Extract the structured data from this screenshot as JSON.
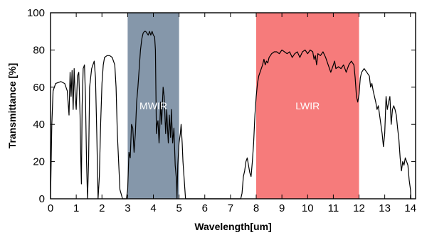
{
  "chart_data": {
    "type": "line",
    "xlabel": "Wavelength[um]",
    "ylabel": "Transmittance [%]",
    "xlim": [
      0,
      14.2
    ],
    "ylim": [
      0,
      100
    ],
    "x_ticks": [
      0,
      1,
      2,
      3,
      4,
      5,
      6,
      7,
      8,
      9,
      10,
      11,
      12,
      13,
      14
    ],
    "y_ticks": [
      0,
      20,
      40,
      60,
      80,
      100
    ],
    "grid": false,
    "bands": [
      {
        "label": "MWIR",
        "x_start": 3,
        "x_end": 5,
        "color": "#8597aa"
      },
      {
        "label": "LWIR",
        "x_start": 8,
        "x_end": 12,
        "color": "#f67b7b"
      }
    ],
    "series": [
      {
        "color": "#000000",
        "points": [
          [
            0.0,
            0
          ],
          [
            0.05,
            40
          ],
          [
            0.1,
            58
          ],
          [
            0.2,
            62
          ],
          [
            0.4,
            63
          ],
          [
            0.55,
            62
          ],
          [
            0.65,
            58
          ],
          [
            0.72,
            45
          ],
          [
            0.76,
            68
          ],
          [
            0.8,
            55
          ],
          [
            0.84,
            69
          ],
          [
            0.88,
            48
          ],
          [
            0.92,
            70
          ],
          [
            0.96,
            55
          ],
          [
            1.0,
            48
          ],
          [
            1.05,
            66
          ],
          [
            1.1,
            68
          ],
          [
            1.15,
            45
          ],
          [
            1.18,
            20
          ],
          [
            1.2,
            8
          ],
          [
            1.23,
            50
          ],
          [
            1.27,
            70
          ],
          [
            1.32,
            72
          ],
          [
            1.36,
            55
          ],
          [
            1.4,
            20
          ],
          [
            1.44,
            0
          ],
          [
            1.48,
            20
          ],
          [
            1.52,
            60
          ],
          [
            1.6,
            70
          ],
          [
            1.7,
            74
          ],
          [
            1.75,
            65
          ],
          [
            1.8,
            35
          ],
          [
            1.85,
            0
          ],
          [
            1.9,
            12
          ],
          [
            1.95,
            40
          ],
          [
            2.0,
            62
          ],
          [
            2.05,
            72
          ],
          [
            2.1,
            76
          ],
          [
            2.2,
            77
          ],
          [
            2.3,
            77
          ],
          [
            2.4,
            76
          ],
          [
            2.5,
            72
          ],
          [
            2.55,
            60
          ],
          [
            2.6,
            35
          ],
          [
            2.7,
            5
          ],
          [
            2.8,
            0
          ],
          [
            2.95,
            0
          ],
          [
            3.0,
            5
          ],
          [
            3.05,
            25
          ],
          [
            3.1,
            22
          ],
          [
            3.15,
            40
          ],
          [
            3.2,
            38
          ],
          [
            3.25,
            25
          ],
          [
            3.3,
            35
          ],
          [
            3.35,
            52
          ],
          [
            3.4,
            60
          ],
          [
            3.45,
            70
          ],
          [
            3.5,
            80
          ],
          [
            3.55,
            86
          ],
          [
            3.6,
            89
          ],
          [
            3.65,
            90
          ],
          [
            3.7,
            90
          ],
          [
            3.75,
            89
          ],
          [
            3.8,
            88
          ],
          [
            3.85,
            90
          ],
          [
            3.9,
            88
          ],
          [
            3.95,
            90
          ],
          [
            4.0,
            88
          ],
          [
            4.05,
            87
          ],
          [
            4.08,
            80
          ],
          [
            4.12,
            35
          ],
          [
            4.15,
            40
          ],
          [
            4.18,
            42
          ],
          [
            4.22,
            30
          ],
          [
            4.25,
            38
          ],
          [
            4.28,
            52
          ],
          [
            4.32,
            40
          ],
          [
            4.38,
            60
          ],
          [
            4.42,
            55
          ],
          [
            4.48,
            35
          ],
          [
            4.52,
            48
          ],
          [
            4.55,
            38
          ],
          [
            4.58,
            30
          ],
          [
            4.62,
            45
          ],
          [
            4.67,
            33
          ],
          [
            4.7,
            48
          ],
          [
            4.75,
            30
          ],
          [
            4.8,
            38
          ],
          [
            4.85,
            18
          ],
          [
            4.9,
            10
          ],
          [
            4.92,
            0
          ],
          [
            4.95,
            18
          ],
          [
            5.0,
            30
          ],
          [
            5.05,
            35
          ],
          [
            5.08,
            40
          ],
          [
            5.12,
            30
          ],
          [
            5.15,
            20
          ],
          [
            5.2,
            10
          ],
          [
            5.25,
            0
          ],
          [
            7.4,
            0
          ],
          [
            7.45,
            3
          ],
          [
            7.5,
            12
          ],
          [
            7.55,
            15
          ],
          [
            7.6,
            20
          ],
          [
            7.65,
            22
          ],
          [
            7.7,
            18
          ],
          [
            7.75,
            14
          ],
          [
            7.8,
            12
          ],
          [
            7.85,
            20
          ],
          [
            7.9,
            30
          ],
          [
            7.95,
            45
          ],
          [
            8.0,
            55
          ],
          [
            8.05,
            62
          ],
          [
            8.1,
            66
          ],
          [
            8.15,
            68
          ],
          [
            8.2,
            70
          ],
          [
            8.25,
            72
          ],
          [
            8.3,
            75
          ],
          [
            8.35,
            72
          ],
          [
            8.4,
            74
          ],
          [
            8.45,
            73
          ],
          [
            8.5,
            76
          ],
          [
            8.6,
            78
          ],
          [
            8.7,
            79
          ],
          [
            8.8,
            79
          ],
          [
            8.9,
            78
          ],
          [
            9.0,
            80
          ],
          [
            9.1,
            79
          ],
          [
            9.2,
            78
          ],
          [
            9.3,
            79
          ],
          [
            9.4,
            76
          ],
          [
            9.5,
            78
          ],
          [
            9.6,
            79
          ],
          [
            9.7,
            76
          ],
          [
            9.8,
            79
          ],
          [
            9.9,
            80
          ],
          [
            10.0,
            78
          ],
          [
            10.1,
            80
          ],
          [
            10.2,
            79
          ],
          [
            10.25,
            75
          ],
          [
            10.3,
            77
          ],
          [
            10.35,
            72
          ],
          [
            10.4,
            78
          ],
          [
            10.5,
            77
          ],
          [
            10.6,
            79
          ],
          [
            10.7,
            76
          ],
          [
            10.8,
            72
          ],
          [
            10.9,
            68
          ],
          [
            11.0,
            72
          ],
          [
            11.05,
            74
          ],
          [
            11.1,
            70
          ],
          [
            11.2,
            71
          ],
          [
            11.3,
            70
          ],
          [
            11.4,
            72
          ],
          [
            11.5,
            68
          ],
          [
            11.6,
            72
          ],
          [
            11.7,
            74
          ],
          [
            11.8,
            72
          ],
          [
            11.85,
            65
          ],
          [
            11.9,
            55
          ],
          [
            11.95,
            52
          ],
          [
            12.0,
            56
          ],
          [
            12.05,
            65
          ],
          [
            12.1,
            68
          ],
          [
            12.2,
            70
          ],
          [
            12.3,
            68
          ],
          [
            12.4,
            66
          ],
          [
            12.45,
            60
          ],
          [
            12.5,
            62
          ],
          [
            12.55,
            58
          ],
          [
            12.6,
            55
          ],
          [
            12.65,
            52
          ],
          [
            12.7,
            48
          ],
          [
            12.75,
            50
          ],
          [
            12.8,
            45
          ],
          [
            12.85,
            40
          ],
          [
            12.9,
            35
          ],
          [
            12.95,
            28
          ],
          [
            13.0,
            35
          ],
          [
            13.05,
            55
          ],
          [
            13.1,
            48
          ],
          [
            13.15,
            52
          ],
          [
            13.2,
            55
          ],
          [
            13.25,
            40
          ],
          [
            13.3,
            48
          ],
          [
            13.35,
            50
          ],
          [
            13.4,
            48
          ],
          [
            13.45,
            45
          ],
          [
            13.5,
            38
          ],
          [
            13.55,
            32
          ],
          [
            13.6,
            22
          ],
          [
            13.65,
            15
          ],
          [
            13.7,
            20
          ],
          [
            13.75,
            18
          ],
          [
            13.8,
            22
          ],
          [
            13.85,
            20
          ],
          [
            13.9,
            18
          ],
          [
            13.95,
            10
          ],
          [
            14.0,
            5
          ],
          [
            14.02,
            0
          ]
        ]
      }
    ]
  }
}
